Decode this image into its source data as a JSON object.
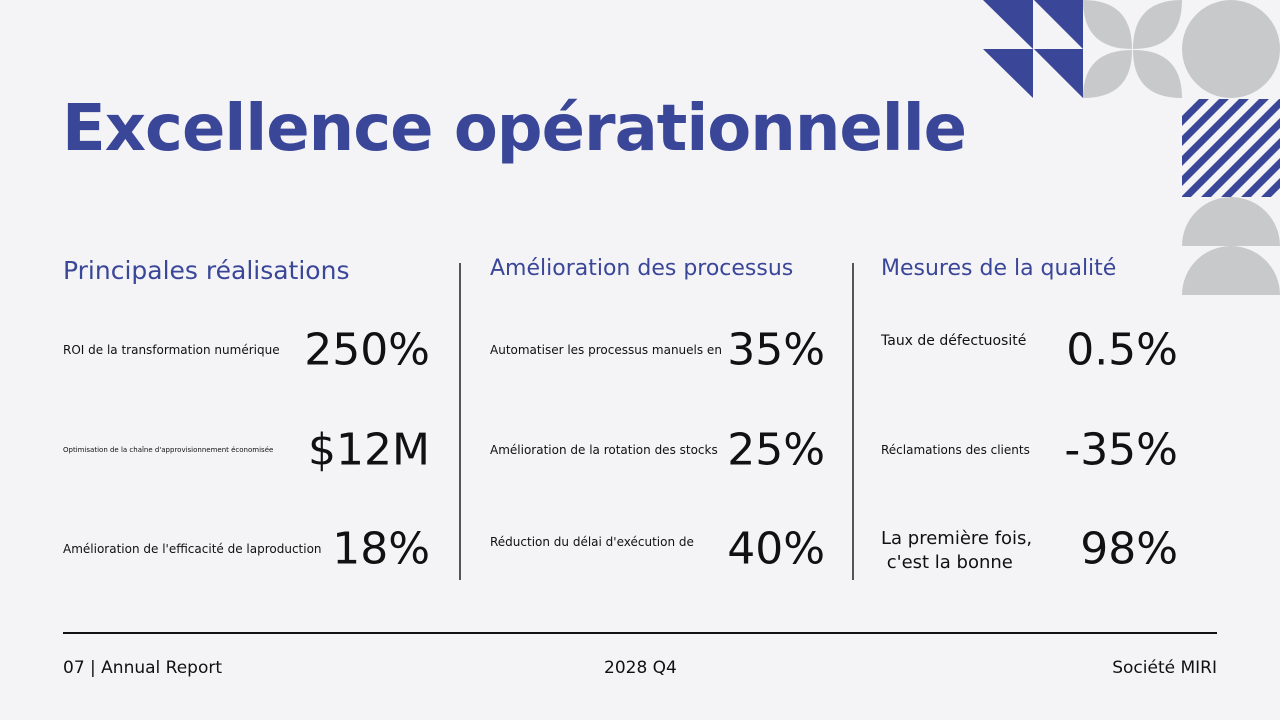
{
  "title": "Excellence opérationnelle",
  "colors": {
    "accent": "#3a4697",
    "decor_gray": "#c8c9cb"
  },
  "columns": [
    {
      "heading": "Principales réalisations",
      "rows": [
        {
          "label": "ROI de la transformation numérique",
          "value": "250%"
        },
        {
          "label": "Optimisation de la chaîne d'approvisionnement économisée",
          "value": "$12M"
        },
        {
          "label": "Amélioration de l'efficacité de laproduction",
          "value": "18%"
        }
      ]
    },
    {
      "heading": "Amélioration des processus",
      "rows": [
        {
          "label": "Automatiser les processus manuels en",
          "value": "35%"
        },
        {
          "label": "Amélioration de la rotation des stocks",
          "value": "25%"
        },
        {
          "label": "Réduction du délai d'exécution de",
          "value": "40%"
        }
      ]
    },
    {
      "heading": "Mesures de la qualité",
      "rows": [
        {
          "label": "Taux de défectuosité",
          "value": "0.5%"
        },
        {
          "label": "Réclamations des clients",
          "value": "-35%"
        },
        {
          "label": "La première fois,\n c'est la bonne",
          "value": "98%"
        }
      ]
    }
  ],
  "footer": {
    "left": "07 | Annual Report",
    "center": "2028 Q4",
    "right": "Société MIRI"
  }
}
